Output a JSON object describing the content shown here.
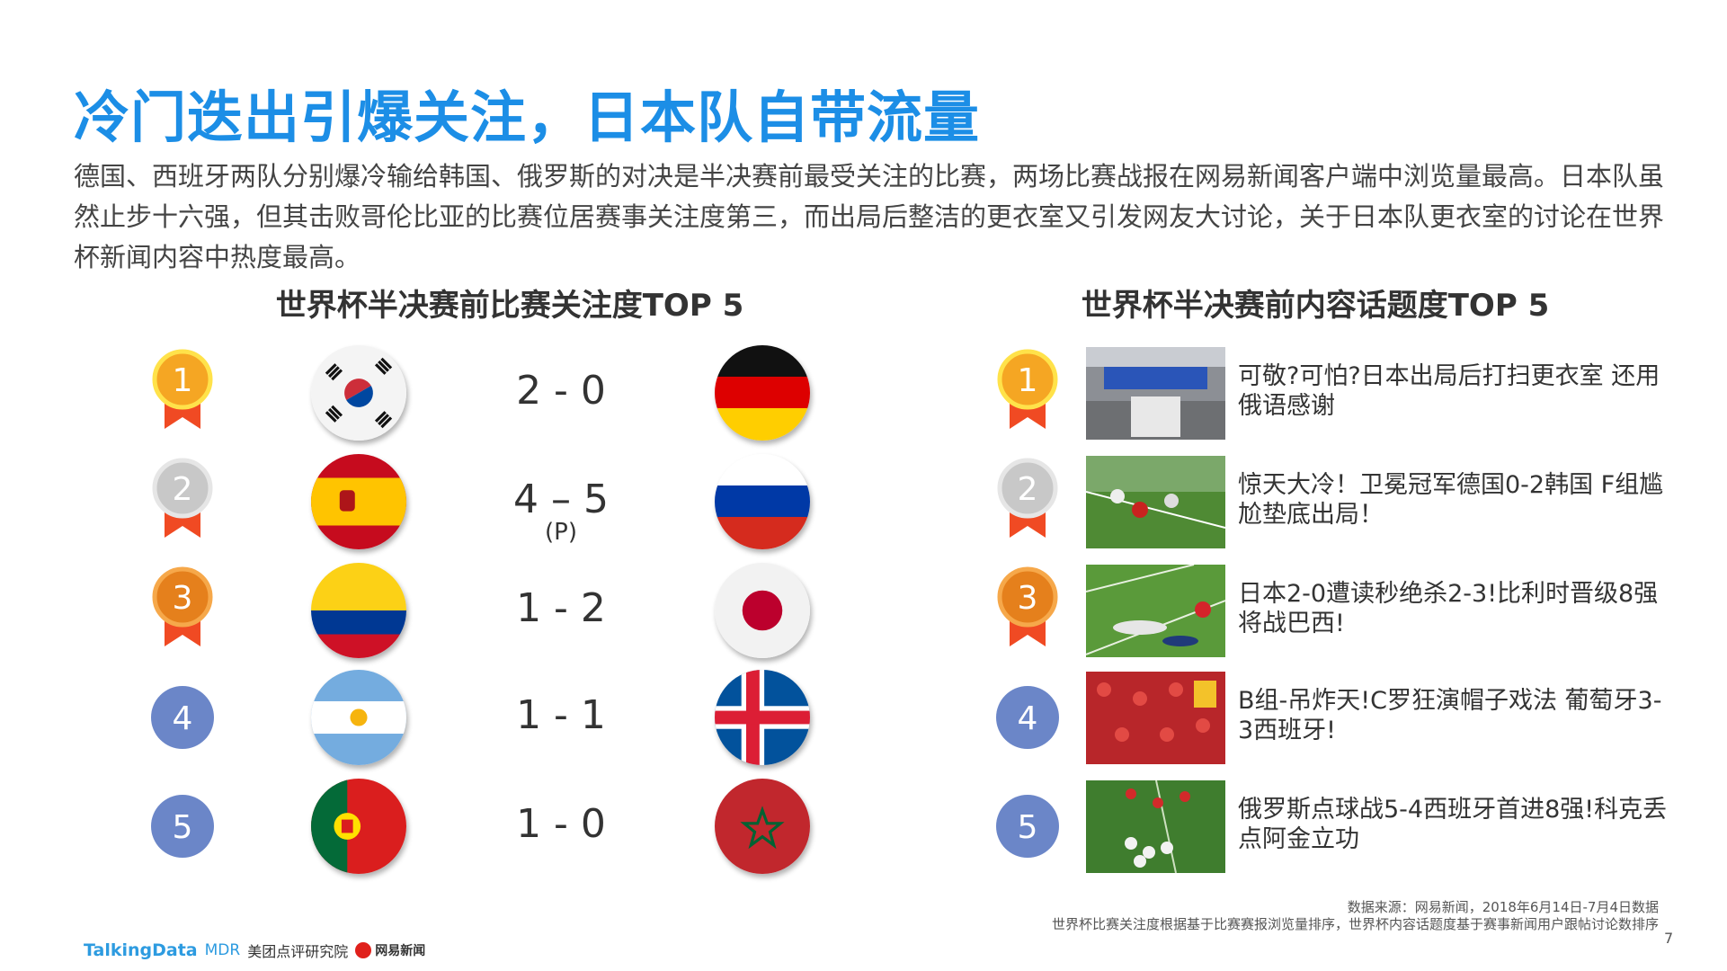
{
  "title": "冷门迭出引爆关注，日本队自带流量",
  "intro": "德国、西班牙两队分别爆冷输给韩国、俄罗斯的对决是半决赛前最受关注的比赛，两场比赛战报在网易新闻客户端中浏览量最高。日本队虽然止步十六强，但其击败哥伦比亚的比赛位居赛事关注度第三，而出局后整洁的更衣室又引发网友大讨论，关于日本队更衣室的讨论在世界杯新闻内容中热度最高。",
  "left": {
    "heading": "世界杯半决赛前比赛关注度TOP 5",
    "matches": [
      {
        "rank": "1",
        "home": "korea-flag",
        "score": "2 - 0",
        "away": "germany-flag"
      },
      {
        "rank": "2",
        "home": "spain-flag",
        "score": "4 – 5",
        "note": "(P)",
        "away": "russia-flag"
      },
      {
        "rank": "3",
        "home": "colombia-flag",
        "score": "1 - 2",
        "away": "japan-flag"
      },
      {
        "rank": "4",
        "home": "argentina-flag",
        "score": "1 - 1",
        "away": "iceland-flag"
      },
      {
        "rank": "5",
        "home": "portugal-flag",
        "score": "1 - 0",
        "away": "morocco-flag"
      }
    ]
  },
  "right": {
    "heading": "世界杯半决赛前内容话题度TOP 5",
    "items": [
      {
        "rank": "1",
        "text": "可敬?可怕?日本出局后打扫更衣室 还用俄语感谢"
      },
      {
        "rank": "2",
        "text": "惊天大冷！卫冕冠军德国0-2韩国 F组尴尬垫底出局！"
      },
      {
        "rank": "3",
        "text": "日本2-0遭读秒绝杀2-3!比利时晋级8强将战巴西!"
      },
      {
        "rank": "4",
        "text": "B组-吊炸天!C罗狂演帽子戏法 葡萄牙3-3西班牙!"
      },
      {
        "rank": "5",
        "text": "俄罗斯点球战5-4西班牙首进8强!科克丢点阿金立功"
      }
    ]
  },
  "footer": {
    "source": "数据来源：网易新闻，2018年6月14日-7月4日数据",
    "note": "世界杯比赛关注度根据基于比赛赛报浏览量排序，世界杯内容话题度基于赛事新闻用户跟帖讨论数排序",
    "page": "7",
    "logos": {
      "talkingdata": "TalkingData",
      "mdr": "MDR",
      "meituan": "美团点评研究院",
      "netease": "网易新闻"
    }
  },
  "colors": {
    "title": "#1c8ee6",
    "gold": "#f5a623",
    "silver": "#c8c8c8",
    "bronze": "#e5801c",
    "ribbon": "#f04a23",
    "rank_blue": "#6b86c8"
  }
}
